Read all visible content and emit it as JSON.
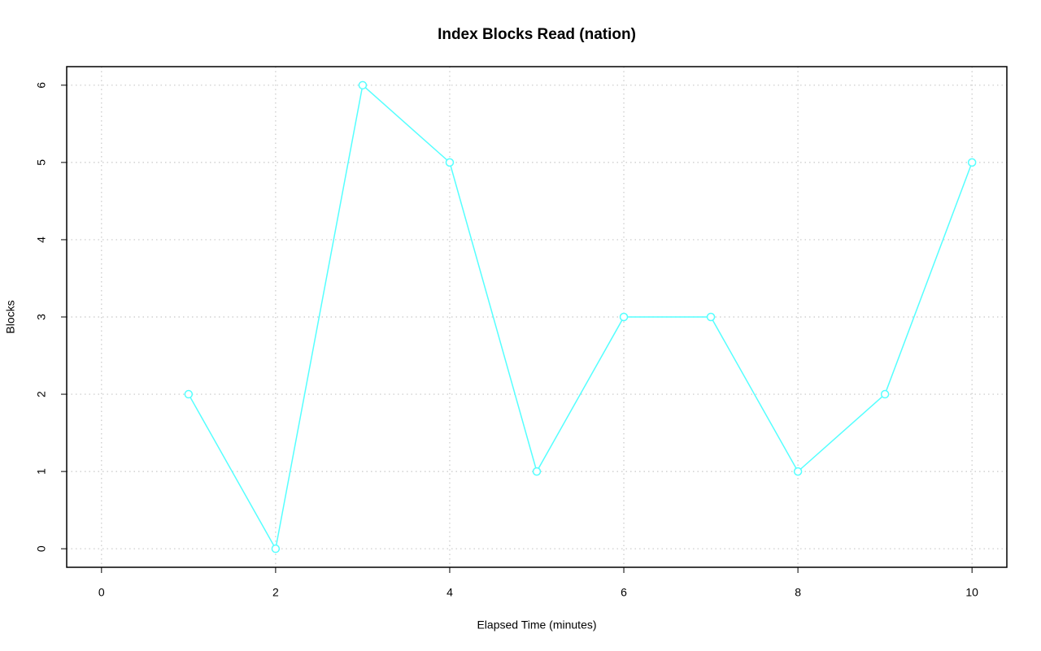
{
  "chart_data": {
    "type": "line",
    "title": "Index Blocks Read (nation)",
    "x_label": "Elapsed Time (minutes)",
    "y_label": "Blocks",
    "x": [
      1,
      2,
      3,
      4,
      5,
      6,
      7,
      8,
      9,
      10
    ],
    "values": [
      2,
      0,
      6,
      5,
      1,
      3,
      3,
      1,
      2,
      5
    ],
    "color": "#55ffff",
    "markers": true,
    "xlim": [
      -0.4,
      10.4
    ],
    "ylim": [
      -0.24,
      6.24
    ],
    "xticks": [
      0,
      2,
      4,
      6,
      8,
      10
    ],
    "yticks": [
      0,
      1,
      2,
      3,
      4,
      5,
      6
    ],
    "grid": true
  }
}
